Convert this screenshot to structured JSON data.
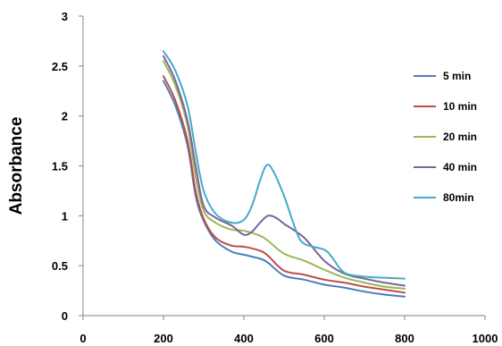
{
  "chart_data": {
    "type": "line",
    "xlabel": "",
    "ylabel": "Absorbance",
    "xlim": [
      0,
      1000
    ],
    "ylim": [
      0,
      3
    ],
    "xticks": [
      0,
      200,
      400,
      600,
      800,
      1000
    ],
    "yticks": [
      0,
      0.5,
      1,
      1.5,
      2,
      2.5,
      3
    ],
    "xtick_labels": [
      "0",
      "200",
      "400",
      "600",
      "800",
      "1000"
    ],
    "ytick_labels": [
      "0",
      "0.5",
      "1",
      "1.5",
      "2",
      "2.5",
      "3"
    ],
    "grid": false,
    "legend_position": "right",
    "series": [
      {
        "name": "5 min",
        "color": "#4a7ebb",
        "x": [
          200,
          230,
          260,
          280,
          300,
          330,
          370,
          400,
          440,
          460,
          500,
          550,
          600,
          650,
          700,
          750,
          800
        ],
        "y": [
          2.35,
          2.1,
          1.7,
          1.2,
          0.95,
          0.75,
          0.64,
          0.61,
          0.57,
          0.53,
          0.4,
          0.36,
          0.31,
          0.28,
          0.24,
          0.21,
          0.19
        ]
      },
      {
        "name": "10 min",
        "color": "#be4b48",
        "x": [
          200,
          230,
          260,
          280,
          300,
          330,
          370,
          400,
          440,
          460,
          500,
          550,
          600,
          650,
          700,
          750,
          800
        ],
        "y": [
          2.4,
          2.15,
          1.75,
          1.25,
          0.97,
          0.78,
          0.7,
          0.69,
          0.65,
          0.6,
          0.45,
          0.41,
          0.36,
          0.33,
          0.29,
          0.26,
          0.23
        ]
      },
      {
        "name": "20 min",
        "color": "#98b954",
        "x": [
          200,
          230,
          260,
          280,
          300,
          330,
          370,
          400,
          440,
          460,
          500,
          550,
          600,
          650,
          700,
          750,
          800
        ],
        "y": [
          2.55,
          2.3,
          1.9,
          1.4,
          1.05,
          0.93,
          0.86,
          0.85,
          0.8,
          0.75,
          0.62,
          0.55,
          0.46,
          0.38,
          0.33,
          0.29,
          0.27
        ]
      },
      {
        "name": "40 min",
        "color": "#7d60a0",
        "x": [
          200,
          230,
          260,
          280,
          300,
          330,
          370,
          400,
          420,
          440,
          460,
          480,
          500,
          550,
          600,
          650,
          700,
          750,
          800
        ],
        "y": [
          2.6,
          2.35,
          1.95,
          1.5,
          1.1,
          0.98,
          0.9,
          0.81,
          0.84,
          0.93,
          1.0,
          0.98,
          0.92,
          0.78,
          0.55,
          0.42,
          0.37,
          0.33,
          0.3
        ]
      },
      {
        "name": "80min",
        "color": "#46aac4",
        "x": [
          200,
          230,
          260,
          280,
          300,
          330,
          370,
          400,
          420,
          440,
          455,
          470,
          500,
          530,
          550,
          600,
          620,
          650,
          700,
          750,
          800
        ],
        "y": [
          2.65,
          2.45,
          2.1,
          1.65,
          1.25,
          1.02,
          0.93,
          0.96,
          1.1,
          1.35,
          1.5,
          1.47,
          1.2,
          0.85,
          0.72,
          0.66,
          0.58,
          0.43,
          0.39,
          0.38,
          0.37
        ]
      }
    ]
  }
}
